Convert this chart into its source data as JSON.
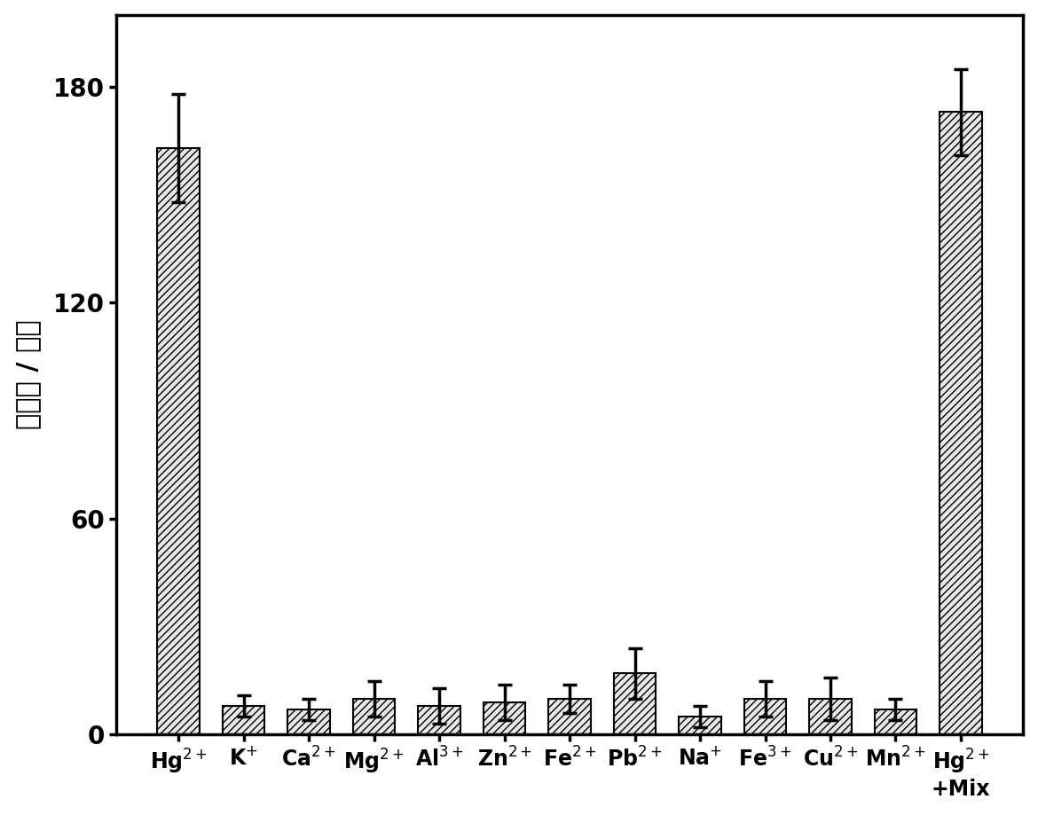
{
  "categories_main": [
    "Hg",
    "K",
    "Ca",
    "Mg",
    "Al",
    "Zn",
    "Fe",
    "Pb",
    "Na",
    "Fe",
    "Cu",
    "Mn",
    "Hg"
  ],
  "superscripts": [
    "2+",
    "+",
    "2+",
    "2+",
    "3+",
    "2+",
    "2+",
    "2+",
    "+",
    "3+",
    "2+",
    "2+",
    "2+"
  ],
  "last_label_extra": "+Mix",
  "values": [
    163,
    8,
    7,
    10,
    8,
    9,
    10,
    17,
    5,
    10,
    10,
    7,
    173
  ],
  "errors": [
    15,
    3,
    3,
    5,
    5,
    5,
    4,
    7,
    3,
    5,
    6,
    3,
    12
  ],
  "ylabel_chinese": "光电流 / 纳安",
  "ylim": [
    0,
    200
  ],
  "yticks": [
    0,
    60,
    120,
    180
  ],
  "bar_color": "#e8e8e8",
  "hatch": "////",
  "edge_color": "#000000",
  "error_color": "#000000",
  "axis_fontsize": 22,
  "tick_fontsize": 20,
  "xlabel_fontsize": 17,
  "bar_width": 0.65,
  "spine_linewidth": 2.5,
  "elinewidth": 2.5,
  "capsize": 6,
  "capthick": 2.5
}
